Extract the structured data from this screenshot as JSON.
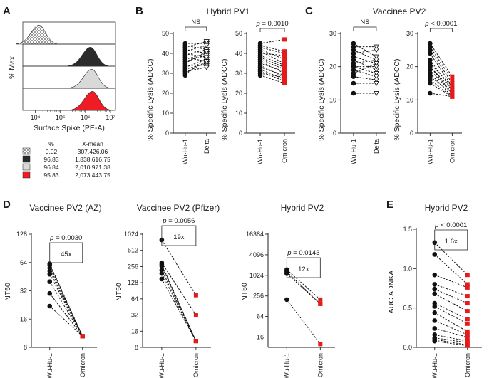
{
  "chart_data": [
    {
      "panel": "A",
      "type": "histogram",
      "ylabel": "% Max",
      "xlabel": "Surface Spike (PE-A)",
      "x_ticks": [
        "10⁴",
        "10⁵",
        "10⁶",
        "10⁷"
      ],
      "legend_headers": [
        "%",
        "X-mean"
      ],
      "rows": [
        {
          "percent": "0.02",
          "x_mean": "307,426.06",
          "color": "#b0b0b0",
          "pattern": "checker",
          "peak_log10": 4.15
        },
        {
          "percent": "96.83",
          "x_mean": "1,838,616.75",
          "color": "#2b2b2b",
          "pattern": "solid",
          "peak_log10": 6.2
        },
        {
          "percent": "96.84",
          "x_mean": "2,010,971.38",
          "color": "#d9d9d9",
          "pattern": "solid",
          "peak_log10": 6.25
        },
        {
          "percent": "95.83",
          "x_mean": "2,073,443.75",
          "color": "#ee1c25",
          "pattern": "solid",
          "peak_log10": 6.28
        }
      ]
    },
    {
      "panel": "B",
      "title": "Hybrid PV1",
      "type": "paired-scatter",
      "ylabel": "% Specific Lysis (ADCC)",
      "subplots": [
        {
          "categories": [
            "Wu-Hu-1",
            "Delta"
          ],
          "ylim": [
            0,
            50
          ],
          "yticks": [
            0,
            10,
            20,
            30,
            40,
            50
          ],
          "annotation": "NS",
          "markers": [
            "circle-black",
            "triangle-open"
          ],
          "pairs": [
            [
              45,
              45
            ],
            [
              44,
              42
            ],
            [
              43,
              46
            ],
            [
              42,
              40
            ],
            [
              41,
              44
            ],
            [
              40,
              38
            ],
            [
              39,
              42
            ],
            [
              38,
              36
            ],
            [
              37,
              40
            ],
            [
              36,
              39
            ],
            [
              35,
              41
            ],
            [
              34,
              34
            ],
            [
              33,
              37
            ],
            [
              32,
              35
            ],
            [
              31,
              33
            ],
            [
              30,
              36
            ],
            [
              29,
              38
            ]
          ]
        },
        {
          "categories": [
            "Wu-Hu-1",
            "Omicron"
          ],
          "ylim": [
            0,
            50
          ],
          "yticks": [
            0,
            10,
            20,
            30,
            40,
            50
          ],
          "annotation": "p = 0.0010",
          "markers": [
            "circle-black",
            "square-red"
          ],
          "pairs": [
            [
              45,
              47
            ],
            [
              44,
              41
            ],
            [
              43,
              40
            ],
            [
              42,
              37
            ],
            [
              41,
              35
            ],
            [
              40,
              39
            ],
            [
              39,
              34
            ],
            [
              38,
              33
            ],
            [
              37,
              32
            ],
            [
              36,
              30
            ],
            [
              35,
              31
            ],
            [
              34,
              28
            ],
            [
              33,
              29
            ],
            [
              32,
              27
            ],
            [
              31,
              26
            ],
            [
              30,
              28
            ],
            [
              29,
              25
            ]
          ]
        }
      ]
    },
    {
      "panel": "C",
      "title": "Vaccinee PV2",
      "type": "paired-scatter",
      "ylabel": "% Specific Lysis (ADCC)",
      "subplots": [
        {
          "categories": [
            "Wu-Hu-1",
            "Delta"
          ],
          "ylim": [
            0,
            30
          ],
          "yticks": [
            0,
            10,
            20,
            30
          ],
          "annotation": "NS",
          "markers": [
            "circle-black",
            "triangle-open"
          ],
          "pairs": [
            [
              27,
              23
            ],
            [
              26,
              26
            ],
            [
              25,
              22
            ],
            [
              24,
              25
            ],
            [
              23,
              21
            ],
            [
              22,
              19
            ],
            [
              21,
              22
            ],
            [
              20,
              20
            ],
            [
              20,
              18
            ],
            [
              19,
              17
            ],
            [
              18,
              21
            ],
            [
              17,
              16
            ],
            [
              15,
              15
            ],
            [
              12,
              12
            ]
          ]
        },
        {
          "categories": [
            "Wu-Hu-1",
            "Omicron"
          ],
          "ylim": [
            0,
            30
          ],
          "yticks": [
            0,
            10,
            20,
            30
          ],
          "annotation": "p < 0.0001",
          "markers": [
            "circle-black",
            "square-red"
          ],
          "pairs": [
            [
              27,
              17
            ],
            [
              26,
              16
            ],
            [
              25,
              15
            ],
            [
              24,
              14
            ],
            [
              22,
              13
            ],
            [
              21,
              14
            ],
            [
              20,
              13
            ],
            [
              20,
              12
            ],
            [
              19,
              12
            ],
            [
              18,
              11
            ],
            [
              17,
              12
            ],
            [
              16,
              11
            ],
            [
              15,
              11
            ],
            [
              12,
              11
            ]
          ]
        }
      ]
    },
    {
      "panel": "D",
      "type": "paired-scatter",
      "ylabel": "NT50",
      "subplots": [
        {
          "title": "Vaccinee PV2 (AZ)",
          "categories": [
            "Wu-Hu-1",
            "Omicron"
          ],
          "scale": "log2",
          "ylim": [
            8,
            128
          ],
          "yticks": [
            8,
            16,
            32,
            64,
            128
          ],
          "annotation": "p = 0.0030",
          "fold": "45x",
          "markers": [
            "circle-black",
            "square-red"
          ],
          "pairs": [
            [
              62,
              10.5
            ],
            [
              60,
              10.5
            ],
            [
              56,
              10.5
            ],
            [
              52,
              10.5
            ],
            [
              48,
              10.5
            ],
            [
              40,
              10.5
            ],
            [
              30,
              10.5
            ],
            [
              22,
              10.5
            ]
          ]
        },
        {
          "title": "Vaccinee PV2 (Pfizer)",
          "categories": [
            "Wu-Hu-1",
            "Omicron"
          ],
          "scale": "log2",
          "ylim": [
            8,
            1024
          ],
          "yticks": [
            8,
            16,
            32,
            64,
            128,
            256,
            512,
            1024
          ],
          "annotation": "p = 0.0056",
          "fold": "19x",
          "markers": [
            "circle-black",
            "square-red"
          ],
          "pairs": [
            [
              800,
              75
            ],
            [
              300,
              32
            ],
            [
              280,
              10.5
            ],
            [
              260,
              10.5
            ],
            [
              220,
              10.5
            ],
            [
              190,
              10.5
            ],
            [
              150,
              10.5
            ]
          ]
        },
        {
          "title": "Hybrid PV2",
          "categories": [
            "Wu-Hu-1",
            "Omicron"
          ],
          "scale": "log4",
          "ylim": [
            8,
            16384
          ],
          "yticks": [
            16,
            64,
            256,
            1024,
            4096,
            16384
          ],
          "annotation": "p = 0.0143",
          "fold": "12x",
          "markers": [
            "circle-black",
            "square-red"
          ],
          "pairs": [
            [
              1500,
              200
            ],
            [
              1300,
              150
            ],
            [
              1150,
              150
            ],
            [
              200,
              10
            ]
          ]
        }
      ]
    },
    {
      "panel": "E",
      "title": "Hybrid PV2",
      "type": "paired-scatter",
      "ylabel": "AUC ADNKA",
      "subplots": [
        {
          "categories": [
            "Wu-Hu-1",
            "Omicron"
          ],
          "ylim": [
            0,
            1.5
          ],
          "yticks": [
            "0.0",
            "0.5",
            "1.0",
            "1.5"
          ],
          "annotation": "p < 0.0001",
          "fold": "1.6x",
          "markers": [
            "circle-black",
            "square-red"
          ],
          "pairs": [
            [
              1.33,
              0.92
            ],
            [
              1.18,
              0.8
            ],
            [
              0.92,
              0.76
            ],
            [
              0.8,
              0.65
            ],
            [
              0.74,
              0.56
            ],
            [
              0.68,
              0.46
            ],
            [
              0.56,
              0.36
            ],
            [
              0.52,
              0.3
            ],
            [
              0.44,
              0.2
            ],
            [
              0.34,
              0.16
            ],
            [
              0.24,
              0.13
            ],
            [
              0.16,
              0.08
            ],
            [
              0.12,
              0.06
            ],
            [
              0.1,
              0.03
            ],
            [
              0.08,
              0.02
            ]
          ]
        }
      ]
    }
  ]
}
